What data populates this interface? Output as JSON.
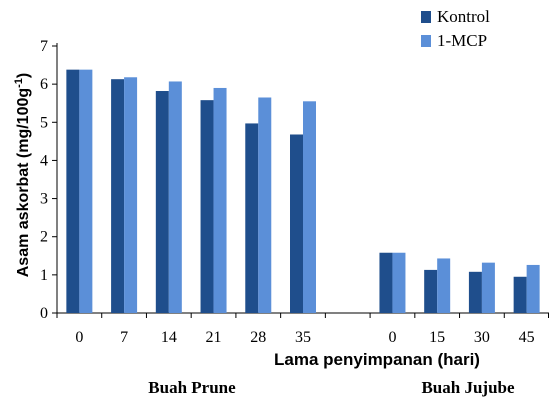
{
  "chart_data": {
    "type": "bar",
    "ylabel": "Asam askorbat (mg/100g",
    "ylabel_sup": "-1",
    "ylabel_close": ")",
    "xlabel": "Lama penyimpanan (hari)",
    "ylim": [
      0,
      7
    ],
    "yticks": [
      "0",
      "1",
      "2",
      "3",
      "4",
      "5",
      "6",
      "7"
    ],
    "legend_position": "top-right",
    "grid": false,
    "groups": [
      {
        "label": "Buah Prune",
        "categories": [
          "0",
          "7",
          "14",
          "21",
          "28",
          "35"
        ]
      },
      {
        "label": "Buah Jujube",
        "categories": [
          "0",
          "15",
          "30",
          "45"
        ]
      }
    ],
    "series": [
      {
        "name": "Kontrol",
        "color": "#1f4e8c",
        "values": [
          6.38,
          6.13,
          5.82,
          5.58,
          4.97,
          4.68,
          1.58,
          1.13,
          1.08,
          0.95
        ]
      },
      {
        "name": "1-MCP",
        "color": "#5b8fd8",
        "values": [
          6.38,
          6.18,
          6.07,
          5.9,
          5.65,
          5.55,
          1.58,
          1.43,
          1.32,
          1.26
        ]
      }
    ]
  }
}
